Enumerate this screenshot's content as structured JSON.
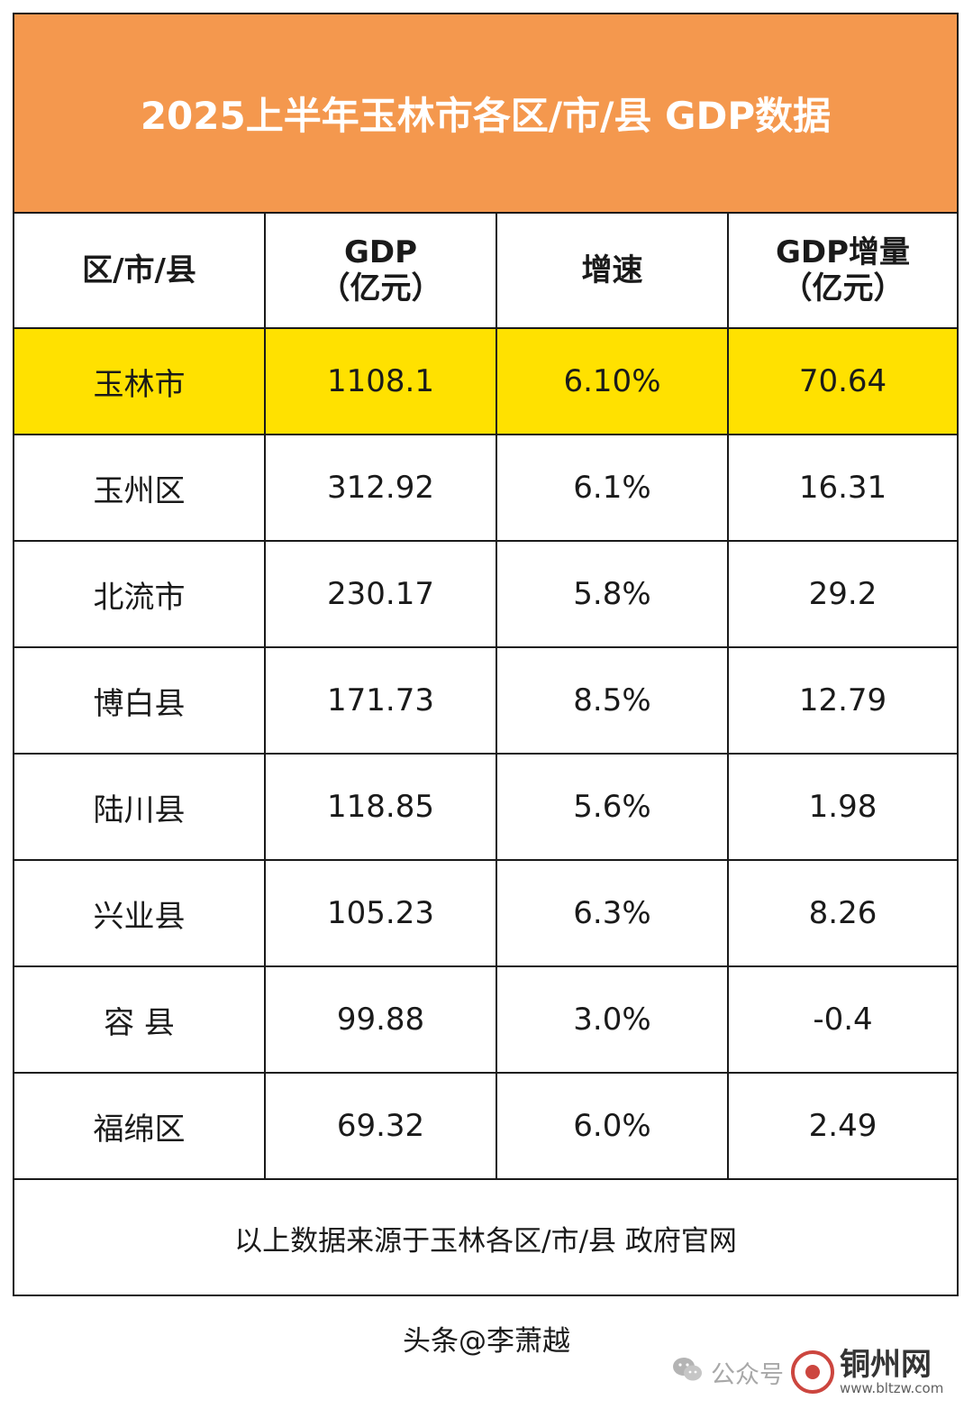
{
  "title": "2025上半年玉林市各区/市/县 GDP数据",
  "table": {
    "headers": [
      {
        "line1": "区/市/县",
        "line2": ""
      },
      {
        "line1": "GDP",
        "line2": "（亿元）"
      },
      {
        "line1": "增速",
        "line2": ""
      },
      {
        "line1": "GDP增量",
        "line2": "（亿元）"
      }
    ],
    "rows": [
      {
        "name": "玉林市",
        "gdp": "1108.1",
        "growth": "6.10%",
        "increase": "70.64"
      },
      {
        "name": "玉州区",
        "gdp": "312.92",
        "growth": "6.1%",
        "increase": "16.31"
      },
      {
        "name": "北流市",
        "gdp": "230.17",
        "growth": "5.8%",
        "increase": "29.2"
      },
      {
        "name": "博白县",
        "gdp": "171.73",
        "growth": "8.5%",
        "increase": "12.79"
      },
      {
        "name": "陆川县",
        "gdp": "118.85",
        "growth": "5.6%",
        "increase": "1.98"
      },
      {
        "name": "兴业县",
        "gdp": "105.23",
        "growth": "6.3%",
        "increase": "8.26"
      },
      {
        "name": "容 县",
        "gdp": "99.88",
        "growth": "3.0%",
        "increase": "-0.4"
      },
      {
        "name": "福绵区",
        "gdp": "69.32",
        "growth": "6.0%",
        "increase": "2.49"
      }
    ]
  },
  "source_note": "以上数据来源于玉林各区/市/县 政府官网",
  "author": "头条@李萧越",
  "watermark": {
    "wechat_icon": "wechat-icon",
    "account_text": "公众号",
    "site_name": "铜州网",
    "site_url": "www.bltzw.com"
  },
  "colors": {
    "title_bg": "#f4984e",
    "highlight_row": "#ffe100",
    "border": "#1a1a1a"
  }
}
